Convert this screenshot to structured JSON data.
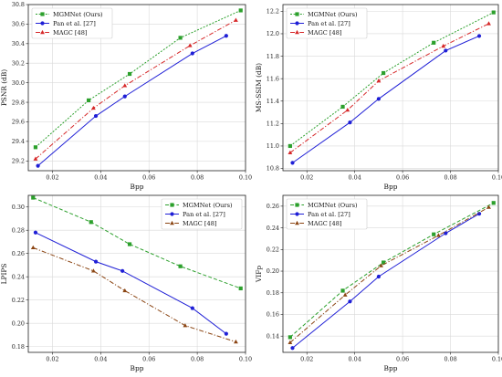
{
  "chart_data": [
    {
      "type": "line",
      "xlabel": "Bpp",
      "ylabel": "PSNR (dB)",
      "xlim": [
        0.01,
        0.1
      ],
      "ylim": [
        29.1,
        30.8
      ],
      "xticks": [
        "0.02",
        "0.04",
        "0.06",
        "0.08",
        "0.10"
      ],
      "yticks": [
        "29.2",
        "29.4",
        "29.6",
        "29.8",
        "30.0",
        "30.2",
        "30.4",
        "30.6",
        "30.8"
      ],
      "grid": true,
      "legend": "top-left",
      "series": [
        {
          "name": "MGMNet (Ours)",
          "color": "#2ca02c",
          "marker": "square",
          "dash": "dotted",
          "x": [
            0.013,
            0.035,
            0.052,
            0.073,
            0.098
          ],
          "y": [
            29.34,
            29.82,
            30.09,
            30.46,
            30.74
          ]
        },
        {
          "name": "Pan et al. [27]",
          "color": "#1f1fd6",
          "marker": "circle",
          "dash": "solid",
          "x": [
            0.014,
            0.038,
            0.05,
            0.078,
            0.092
          ],
          "y": [
            29.15,
            29.66,
            29.86,
            30.3,
            30.48
          ]
        },
        {
          "name": "MAGC [48]",
          "color": "#d62728",
          "marker": "triangle",
          "dash": "dashdot",
          "x": [
            0.013,
            0.037,
            0.05,
            0.077,
            0.096
          ],
          "y": [
            29.22,
            29.74,
            29.97,
            30.38,
            30.64
          ]
        }
      ]
    },
    {
      "type": "line",
      "xlabel": "Bpp",
      "ylabel": "MS-SSIM (dB)",
      "xlim": [
        0.01,
        0.1
      ],
      "ylim": [
        10.78,
        12.26
      ],
      "xticks": [
        "0.02",
        "0.04",
        "0.06",
        "0.08",
        "0.10"
      ],
      "yticks": [
        "10.8",
        "11.0",
        "11.2",
        "11.4",
        "11.6",
        "11.8",
        "12.0",
        "12.2"
      ],
      "grid": true,
      "legend": "top-left",
      "series": [
        {
          "name": "MGMNet (Ours)",
          "color": "#2ca02c",
          "marker": "square",
          "dash": "dotted",
          "x": [
            0.013,
            0.035,
            0.052,
            0.073,
            0.098
          ],
          "y": [
            11.0,
            11.35,
            11.65,
            11.92,
            12.19
          ]
        },
        {
          "name": "Pan et al. [27]",
          "color": "#1f1fd6",
          "marker": "circle",
          "dash": "solid",
          "x": [
            0.014,
            0.038,
            0.05,
            0.078,
            0.092
          ],
          "y": [
            10.85,
            11.21,
            11.42,
            11.85,
            11.98
          ]
        },
        {
          "name": "MAGC [48]",
          "color": "#d62728",
          "marker": "triangle",
          "dash": "dashdot",
          "x": [
            0.013,
            0.037,
            0.05,
            0.077,
            0.096
          ],
          "y": [
            10.94,
            11.32,
            11.58,
            11.89,
            12.09
          ]
        }
      ]
    },
    {
      "type": "line",
      "xlabel": "Bpp",
      "ylabel": "LPIPS",
      "xlim": [
        0.01,
        0.1
      ],
      "ylim": [
        0.175,
        0.31
      ],
      "xticks": [
        "0.02",
        "0.04",
        "0.06",
        "0.08",
        "0.10"
      ],
      "yticks": [
        "0.18",
        "0.20",
        "0.22",
        "0.24",
        "0.26",
        "0.28",
        "0.30"
      ],
      "grid": true,
      "legend": "top-right",
      "series": [
        {
          "name": "MGMNet (Ours)",
          "color": "#2ca02c",
          "marker": "square",
          "dash": "dashed",
          "x": [
            0.012,
            0.036,
            0.052,
            0.073,
            0.098
          ],
          "y": [
            0.308,
            0.287,
            0.268,
            0.249,
            0.23
          ]
        },
        {
          "name": "Pan et al. [27]",
          "color": "#1f1fd6",
          "marker": "circle",
          "dash": "solid",
          "x": [
            0.013,
            0.038,
            0.049,
            0.078,
            0.092
          ],
          "y": [
            0.278,
            0.253,
            0.245,
            0.213,
            0.191
          ]
        },
        {
          "name": "MAGC [48]",
          "color": "#8b4513",
          "marker": "triangle",
          "dash": "dashdot",
          "x": [
            0.012,
            0.037,
            0.05,
            0.075,
            0.096
          ],
          "y": [
            0.265,
            0.245,
            0.228,
            0.198,
            0.184
          ]
        }
      ]
    },
    {
      "type": "line",
      "xlabel": "Bpp",
      "ylabel": "VIFp",
      "xlim": [
        0.01,
        0.1
      ],
      "ylim": [
        0.125,
        0.27
      ],
      "xticks": [
        "0.02",
        "0.04",
        "0.06",
        "0.08",
        "0.10"
      ],
      "yticks": [
        "0.14",
        "0.16",
        "0.18",
        "0.20",
        "0.22",
        "0.24",
        "0.26"
      ],
      "grid": true,
      "legend": "top-left",
      "series": [
        {
          "name": "MGMNet (Ours)",
          "color": "#2ca02c",
          "marker": "square",
          "dash": "dashed",
          "x": [
            0.013,
            0.035,
            0.052,
            0.073,
            0.098
          ],
          "y": [
            0.139,
            0.182,
            0.208,
            0.234,
            0.263
          ]
        },
        {
          "name": "Pan et al. [27]",
          "color": "#1f1fd6",
          "marker": "circle",
          "dash": "solid",
          "x": [
            0.014,
            0.038,
            0.05,
            0.078,
            0.092
          ],
          "y": [
            0.129,
            0.172,
            0.195,
            0.235,
            0.253
          ]
        },
        {
          "name": "MAGC [48]",
          "color": "#8b4513",
          "marker": "triangle",
          "dash": "dashdot",
          "x": [
            0.013,
            0.036,
            0.051,
            0.075,
            0.096
          ],
          "y": [
            0.134,
            0.178,
            0.205,
            0.233,
            0.259
          ]
        }
      ]
    }
  ]
}
